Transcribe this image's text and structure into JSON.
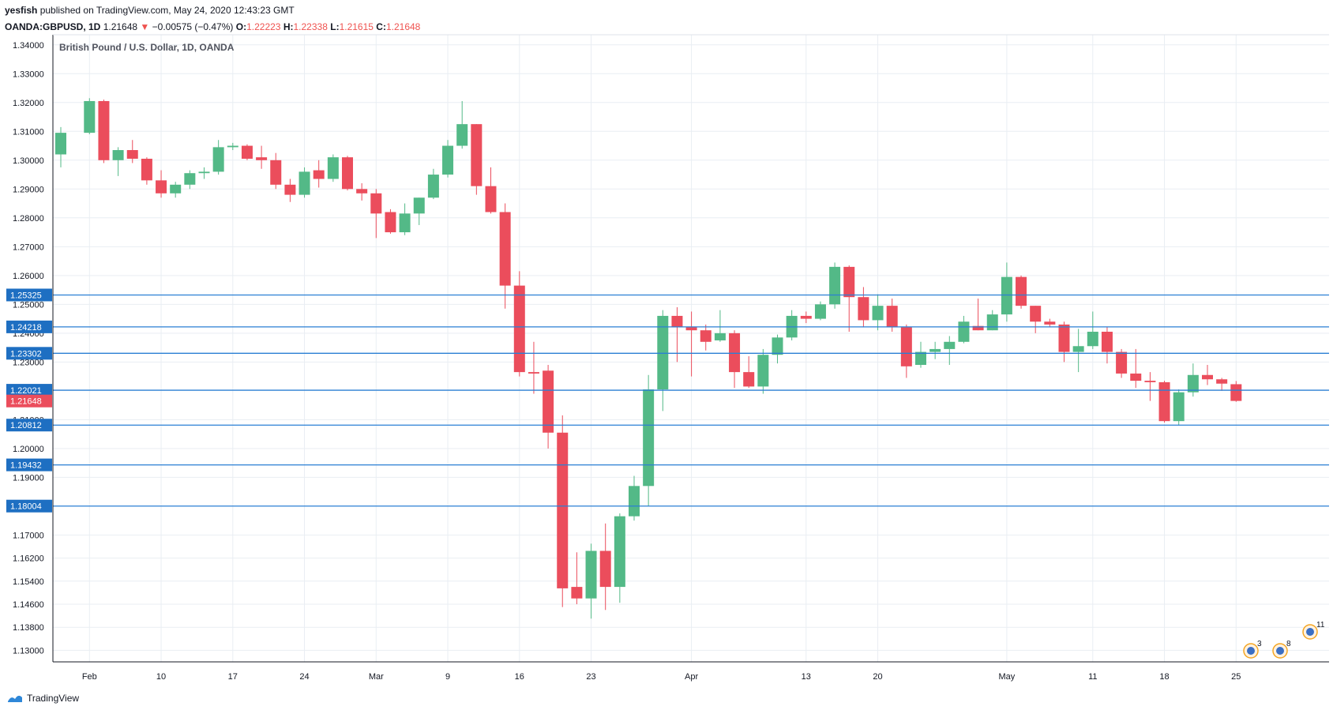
{
  "header": {
    "author": "yesfish",
    "published_text": "published on TradingView.com, May 24, 2020 12:43:23 GMT",
    "symbol": "OANDA:GBPUSD, 1D",
    "last": "1.21648",
    "change": "−0.00575 (−0.47%)",
    "o_label": "O:",
    "o": "1.22223",
    "h_label": "H:",
    "h": "1.22338",
    "l_label": "L:",
    "l": "1.21615",
    "c_label": "C:",
    "c": "1.21648"
  },
  "footer": {
    "brand": "TradingView"
  },
  "colors": {
    "up": "#53b987",
    "down": "#eb4d5c",
    "hline": "#2a7fd4",
    "badge_blue": "#1e6fc2",
    "badge_red": "#eb4d5c",
    "grid": "#e9eef3"
  },
  "event_badges": [
    "3",
    "8",
    "11"
  ],
  "chart_data": {
    "type": "candlestick",
    "title": "British Pound / U.S. Dollar, 1D, OANDA",
    "xlabel": "",
    "ylabel": "",
    "ylim": [
      1.126,
      1.3435
    ],
    "y_ticks": [
      "1.34000",
      "1.33000",
      "1.32000",
      "1.31000",
      "1.30000",
      "1.29000",
      "1.28000",
      "1.27000",
      "1.26000",
      "1.25000",
      "1.24000",
      "1.23000",
      "1.21000",
      "1.20000",
      "1.19000",
      "1.17000",
      "1.16200",
      "1.15400",
      "1.14600",
      "1.13800",
      "1.13000"
    ],
    "x_ticks": [
      {
        "label": "Feb",
        "bar": 2
      },
      {
        "label": "10",
        "bar": 7
      },
      {
        "label": "17",
        "bar": 12
      },
      {
        "label": "24",
        "bar": 17
      },
      {
        "label": "Mar",
        "bar": 22
      },
      {
        "label": "9",
        "bar": 27
      },
      {
        "label": "16",
        "bar": 32
      },
      {
        "label": "23",
        "bar": 37
      },
      {
        "label": "Apr",
        "bar": 44
      },
      {
        "label": "13",
        "bar": 52
      },
      {
        "label": "20",
        "bar": 57
      },
      {
        "label": "May",
        "bar": 66
      },
      {
        "label": "11",
        "bar": 72
      },
      {
        "label": "18",
        "bar": 77
      },
      {
        "label": "25",
        "bar": 82
      }
    ],
    "price_lines": [
      {
        "value": 1.25325,
        "label": "1.25325"
      },
      {
        "value": 1.24218,
        "label": "1.24218"
      },
      {
        "value": 1.23302,
        "label": "1.23302"
      },
      {
        "value": 1.22021,
        "label": "1.22021"
      },
      {
        "value": 1.20812,
        "label": "1.20812"
      },
      {
        "value": 1.19432,
        "label": "1.19432"
      },
      {
        "value": 1.18004,
        "label": "1.18004"
      }
    ],
    "last_price": {
      "value": 1.21648,
      "label": "1.21648"
    },
    "candles": [
      [
        0,
        1.302,
        1.3115,
        1.2975,
        1.3095
      ],
      [
        2,
        1.3095,
        1.3215,
        1.309,
        1.3205
      ],
      [
        3,
        1.3205,
        1.321,
        1.299,
        1.3
      ],
      [
        4,
        1.3,
        1.3045,
        1.2945,
        1.3035
      ],
      [
        5,
        1.3035,
        1.307,
        1.299,
        1.3005
      ],
      [
        6,
        1.3005,
        1.301,
        1.2915,
        1.293
      ],
      [
        7,
        1.293,
        1.2965,
        1.287,
        1.2885
      ],
      [
        8,
        1.2885,
        1.2925,
        1.287,
        1.2915
      ],
      [
        9,
        1.2915,
        1.2965,
        1.29,
        1.2955
      ],
      [
        10,
        1.2955,
        1.2975,
        1.2935,
        1.296
      ],
      [
        11,
        1.296,
        1.307,
        1.295,
        1.3045
      ],
      [
        12,
        1.3045,
        1.306,
        1.3035,
        1.305
      ],
      [
        13,
        1.305,
        1.3055,
        1.3,
        1.3005
      ],
      [
        14,
        1.301,
        1.305,
        1.297,
        1.3
      ],
      [
        15,
        1.3,
        1.3025,
        1.29,
        1.2915
      ],
      [
        16,
        1.2915,
        1.2935,
        1.2855,
        1.288
      ],
      [
        17,
        1.288,
        1.2975,
        1.287,
        1.296
      ],
      [
        18,
        1.2965,
        1.3,
        1.2905,
        1.2935
      ],
      [
        19,
        1.2935,
        1.302,
        1.2925,
        1.301
      ],
      [
        20,
        1.301,
        1.3015,
        1.2895,
        1.29
      ],
      [
        21,
        1.29,
        1.292,
        1.286,
        1.2885
      ],
      [
        22,
        1.2885,
        1.29,
        1.273,
        1.2815
      ],
      [
        23,
        1.282,
        1.283,
        1.2745,
        1.275
      ],
      [
        24,
        1.275,
        1.285,
        1.274,
        1.2815
      ],
      [
        25,
        1.2815,
        1.287,
        1.2775,
        1.287
      ],
      [
        26,
        1.287,
        1.297,
        1.2865,
        1.295
      ],
      [
        27,
        1.295,
        1.307,
        1.294,
        1.305
      ],
      [
        28,
        1.305,
        1.3205,
        1.304,
        1.3125
      ],
      [
        29,
        1.3125,
        1.3125,
        1.288,
        1.291
      ],
      [
        30,
        1.291,
        1.2975,
        1.2815,
        1.282
      ],
      [
        31,
        1.282,
        1.285,
        1.2485,
        1.2565
      ],
      [
        32,
        1.2565,
        1.2615,
        1.225,
        1.2265
      ],
      [
        33,
        1.2265,
        1.237,
        1.219,
        1.226
      ],
      [
        34,
        1.227,
        1.229,
        1.2,
        1.2055
      ],
      [
        35,
        1.2055,
        1.2115,
        1.145,
        1.1515
      ],
      [
        36,
        1.152,
        1.164,
        1.146,
        1.148
      ],
      [
        37,
        1.148,
        1.167,
        1.141,
        1.1645
      ],
      [
        38,
        1.1645,
        1.174,
        1.144,
        1.152
      ],
      [
        39,
        1.152,
        1.1775,
        1.1465,
        1.1765
      ],
      [
        40,
        1.1765,
        1.1905,
        1.175,
        1.187
      ],
      [
        41,
        1.187,
        1.2255,
        1.18,
        1.2205
      ],
      [
        42,
        1.2205,
        1.248,
        1.213,
        1.246
      ],
      [
        43,
        1.246,
        1.249,
        1.23,
        1.242
      ],
      [
        44,
        1.242,
        1.2475,
        1.225,
        1.241
      ],
      [
        45,
        1.241,
        1.243,
        1.234,
        1.237
      ],
      [
        46,
        1.2375,
        1.248,
        1.237,
        1.24
      ],
      [
        47,
        1.24,
        1.241,
        1.221,
        1.2265
      ],
      [
        48,
        1.2265,
        1.232,
        1.221,
        1.2215
      ],
      [
        49,
        1.2215,
        1.2345,
        1.219,
        1.2325
      ],
      [
        50,
        1.2325,
        1.2395,
        1.2295,
        1.2385
      ],
      [
        51,
        1.2385,
        1.248,
        1.2375,
        1.246
      ],
      [
        52,
        1.246,
        1.2475,
        1.2435,
        1.245
      ],
      [
        53,
        1.245,
        1.251,
        1.2445,
        1.25
      ],
      [
        54,
        1.25,
        1.2645,
        1.2485,
        1.263
      ],
      [
        55,
        1.263,
        1.2635,
        1.2405,
        1.2525
      ],
      [
        56,
        1.2525,
        1.256,
        1.242,
        1.2445
      ],
      [
        57,
        1.2445,
        1.2535,
        1.241,
        1.2495
      ],
      [
        58,
        1.2495,
        1.252,
        1.2405,
        1.242
      ],
      [
        59,
        1.242,
        1.243,
        1.2245,
        1.2285
      ],
      [
        60,
        1.229,
        1.237,
        1.228,
        1.2335
      ],
      [
        61,
        1.2335,
        1.237,
        1.231,
        1.2345
      ],
      [
        62,
        1.2345,
        1.239,
        1.229,
        1.237
      ],
      [
        63,
        1.237,
        1.246,
        1.2365,
        1.244
      ],
      [
        64,
        1.2425,
        1.252,
        1.241,
        1.241
      ],
      [
        65,
        1.241,
        1.248,
        1.241,
        1.2465
      ],
      [
        66,
        1.2465,
        1.2645,
        1.244,
        1.2595
      ],
      [
        67,
        1.2595,
        1.26,
        1.2485,
        1.2495
      ],
      [
        68,
        1.2495,
        1.2495,
        1.24,
        1.244
      ],
      [
        69,
        1.244,
        1.245,
        1.242,
        1.243
      ],
      [
        70,
        1.243,
        1.244,
        1.23,
        1.2335
      ],
      [
        71,
        1.2335,
        1.2415,
        1.2265,
        1.2355
      ],
      [
        72,
        1.2355,
        1.2475,
        1.2345,
        1.2405
      ],
      [
        73,
        1.2405,
        1.242,
        1.2295,
        1.2335
      ],
      [
        74,
        1.2335,
        1.2345,
        1.2245,
        1.226
      ],
      [
        75,
        1.226,
        1.2345,
        1.221,
        1.2235
      ],
      [
        76,
        1.2235,
        1.2265,
        1.2165,
        1.223
      ],
      [
        77,
        1.223,
        1.2235,
        1.209,
        1.2095
      ],
      [
        78,
        1.2095,
        1.2205,
        1.208,
        1.2195
      ],
      [
        79,
        1.2195,
        1.2295,
        1.218,
        1.2255
      ],
      [
        80,
        1.2255,
        1.229,
        1.222,
        1.224
      ],
      [
        81,
        1.224,
        1.2245,
        1.22,
        1.2225
      ],
      [
        82,
        1.2223,
        1.2234,
        1.2162,
        1.2165
      ]
    ]
  }
}
